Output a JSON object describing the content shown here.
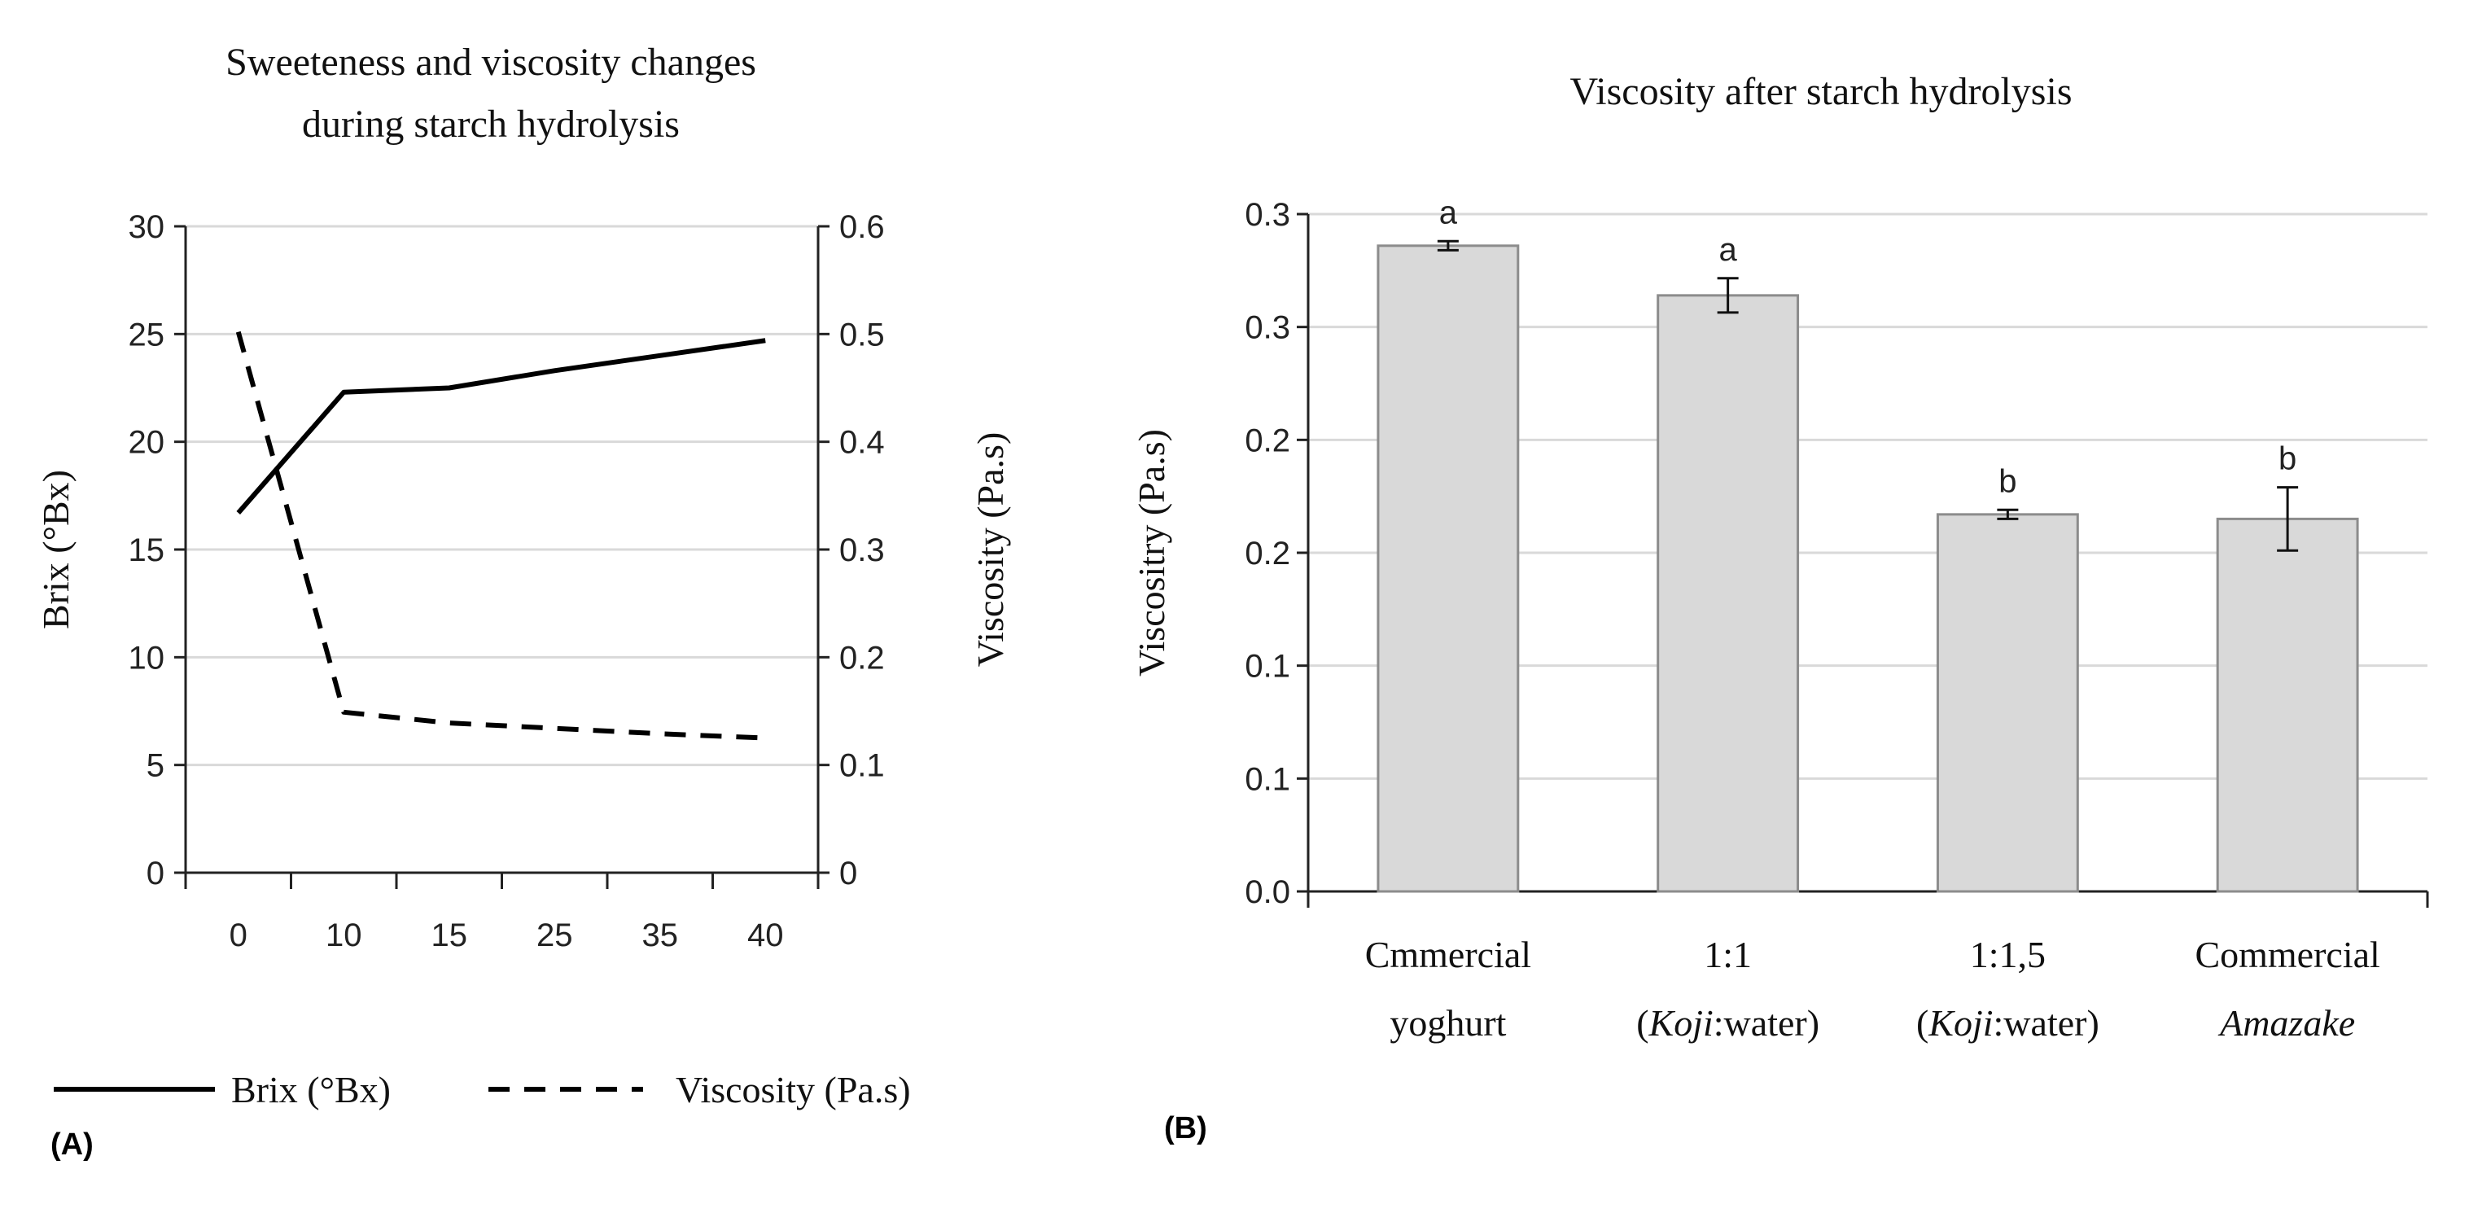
{
  "chart_data": [
    {
      "type": "line",
      "panel_label": "(A)",
      "title_lines": [
        "Sweeteness and viscosity changes",
        "during starch hydrolysis"
      ],
      "xlabel": "",
      "categories": [
        "0",
        "10",
        "15",
        "25",
        "35",
        "40"
      ],
      "y_left": {
        "label": "Brix (°Bx)",
        "ticks": [
          "0",
          "5",
          "10",
          "15",
          "20",
          "25",
          "30"
        ],
        "range": [
          0,
          30
        ]
      },
      "y_right": {
        "label": "Viscosity (Pa.s)",
        "ticks": [
          "0",
          "0.1",
          "0.2",
          "0.3",
          "0.4",
          "0.5",
          "0.6"
        ],
        "range": [
          0,
          0.6
        ]
      },
      "grid": true,
      "legend_position": "bottom",
      "series": [
        {
          "name": "Brix (°Bx)",
          "axis": "left",
          "style": "solid",
          "values": [
            16.7,
            22.3,
            22.5,
            23.3,
            24.0,
            24.7
          ]
        },
        {
          "name": "Viscosity (Pa.s)",
          "axis": "right",
          "style": "dashed",
          "values": [
            0.502,
            0.149,
            0.139,
            0.134,
            0.129,
            0.125
          ]
        }
      ]
    },
    {
      "type": "bar",
      "panel_label": "(B)",
      "title": "Viscosity after starch hydrolysis",
      "ylabel": "Viscositry (Pa.s)",
      "ylim": [
        0,
        0.3
      ],
      "ytick_values": [
        0,
        0.05,
        0.1,
        0.15,
        0.2,
        0.25,
        0.3
      ],
      "ytick_labels": [
        "0.0",
        "0.1",
        "0.1",
        "0.2",
        "0.2",
        "0.3",
        "0.3"
      ],
      "grid": true,
      "categories": [
        [
          [
            {
              "t": "Cmmercial",
              "i": false
            }
          ],
          [
            {
              "t": "yoghurt",
              "i": false
            }
          ]
        ],
        [
          [
            {
              "t": "1:1",
              "i": false
            }
          ],
          [
            {
              "t": "(",
              "i": false
            },
            {
              "t": "Koji",
              "i": true
            },
            {
              "t": ":water)",
              "i": false
            }
          ]
        ],
        [
          [
            {
              "t": "1:1,5",
              "i": false
            }
          ],
          [
            {
              "t": "(",
              "i": false
            },
            {
              "t": "Koji",
              "i": true
            },
            {
              "t": ":water)",
              "i": false
            }
          ]
        ],
        [
          [
            {
              "t": "Commercial",
              "i": false
            }
          ],
          [
            {
              "t": "Amazake",
              "i": true
            }
          ]
        ]
      ],
      "values": [
        0.286,
        0.264,
        0.167,
        0.165
      ],
      "errors": [
        0.002,
        0.0076,
        0.002,
        0.014
      ],
      "significance_letters": [
        "a",
        "a",
        "b",
        "b"
      ],
      "bar_color": "#d9d9d9",
      "bar_edge": "#8c8c8c",
      "grid_color": "#d9d9d9"
    }
  ]
}
